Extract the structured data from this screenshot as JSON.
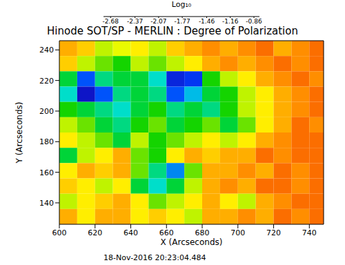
{
  "chart_data": {
    "type": "heatmap",
    "title": "Hinode SOT/SP - MERLIN : Degree of Polarization",
    "annotations": [
      "18-Nov-2016 20:23:04.484"
    ],
    "xlabel": "X (Arcseconds)",
    "ylabel": "Y (Arcseconds)",
    "xlim": [
      600,
      748
    ],
    "xticks": [
      600,
      620,
      640,
      660,
      680,
      700,
      720,
      740
    ],
    "ylim": [
      126,
      246
    ],
    "yticks": [
      140,
      160,
      180,
      200,
      220,
      240
    ],
    "x": [
      605,
      615,
      625,
      635,
      645,
      655,
      665,
      675,
      685,
      695,
      705,
      715,
      725,
      735,
      745
    ],
    "y": [
      241,
      231,
      221,
      211,
      201,
      191,
      181,
      171,
      161,
      151,
      141,
      131
    ],
    "cells": [
      [
        -2.5,
        -2.45,
        -2.3,
        -2.35,
        -2.4,
        -2.3,
        -2.45,
        -2.5,
        -2.55,
        -2.5,
        -2.55,
        -2.6,
        -2.5,
        -2.55,
        -2.6
      ],
      [
        -2.45,
        -2.3,
        -2.2,
        -2.1,
        -2.3,
        -2.2,
        -2.3,
        -2.4,
        -2.5,
        -2.55,
        -2.5,
        -2.55,
        -2.6,
        -2.55,
        -2.6
      ],
      [
        -2.0,
        -1.5,
        -1.9,
        -2.0,
        -2.0,
        -1.8,
        -1.3,
        -1.4,
        -2.1,
        -2.3,
        -2.4,
        -2.5,
        -2.55,
        -2.6,
        -2.55
      ],
      [
        -1.8,
        -1.2,
        -1.5,
        -1.9,
        -2.0,
        -1.9,
        -1.5,
        -1.7,
        -2.0,
        -2.1,
        -2.3,
        -2.4,
        -2.5,
        -2.55,
        -2.6
      ],
      [
        -2.1,
        -2.0,
        -1.9,
        -1.8,
        -2.0,
        -2.1,
        -1.9,
        -2.0,
        -1.9,
        -2.1,
        -2.3,
        -2.4,
        -2.5,
        -2.55,
        -2.6
      ],
      [
        -2.3,
        -2.2,
        -2.0,
        -1.9,
        -2.1,
        -2.2,
        -2.0,
        -2.1,
        -2.2,
        -2.0,
        -2.2,
        -2.4,
        -2.5,
        -2.6,
        -2.55
      ],
      [
        -2.4,
        -2.3,
        -2.2,
        -2.0,
        -2.3,
        -2.1,
        -2.2,
        -2.3,
        -2.4,
        -2.3,
        -2.4,
        -2.5,
        -2.55,
        -2.6,
        -2.6
      ],
      [
        -2.0,
        -2.3,
        -2.4,
        -2.5,
        -2.2,
        -2.1,
        -2.4,
        -2.5,
        -2.45,
        -2.5,
        -2.5,
        -2.6,
        -2.55,
        -2.6,
        -2.6
      ],
      [
        -2.4,
        -2.5,
        -2.45,
        -2.5,
        -2.2,
        -1.9,
        -1.6,
        -2.2,
        -2.5,
        -2.5,
        -2.55,
        -2.5,
        -2.6,
        -2.55,
        -2.6
      ],
      [
        -2.45,
        -2.4,
        -2.3,
        -2.4,
        -2.0,
        -1.8,
        -2.0,
        -2.3,
        -2.5,
        -2.55,
        -2.5,
        -2.6,
        -2.6,
        -2.55,
        -2.6
      ],
      [
        -2.3,
        -2.4,
        -2.45,
        -2.5,
        -2.4,
        -2.2,
        -2.3,
        -2.4,
        -2.5,
        -2.4,
        -2.3,
        -2.5,
        -2.55,
        -2.6,
        -2.6
      ],
      [
        -2.5,
        -2.4,
        -2.5,
        -2.5,
        -2.4,
        -2.45,
        -2.4,
        -2.3,
        -2.5,
        -2.5,
        -2.55,
        -2.5,
        -2.6,
        -2.55,
        -2.6
      ]
    ],
    "colorbar": {
      "label": "Log₁₀",
      "range": [
        -2.77,
        -0.79
      ],
      "ticks": [
        -2.68,
        -2.37,
        -2.07,
        -1.77,
        -1.46,
        -1.16,
        -0.86
      ]
    }
  }
}
